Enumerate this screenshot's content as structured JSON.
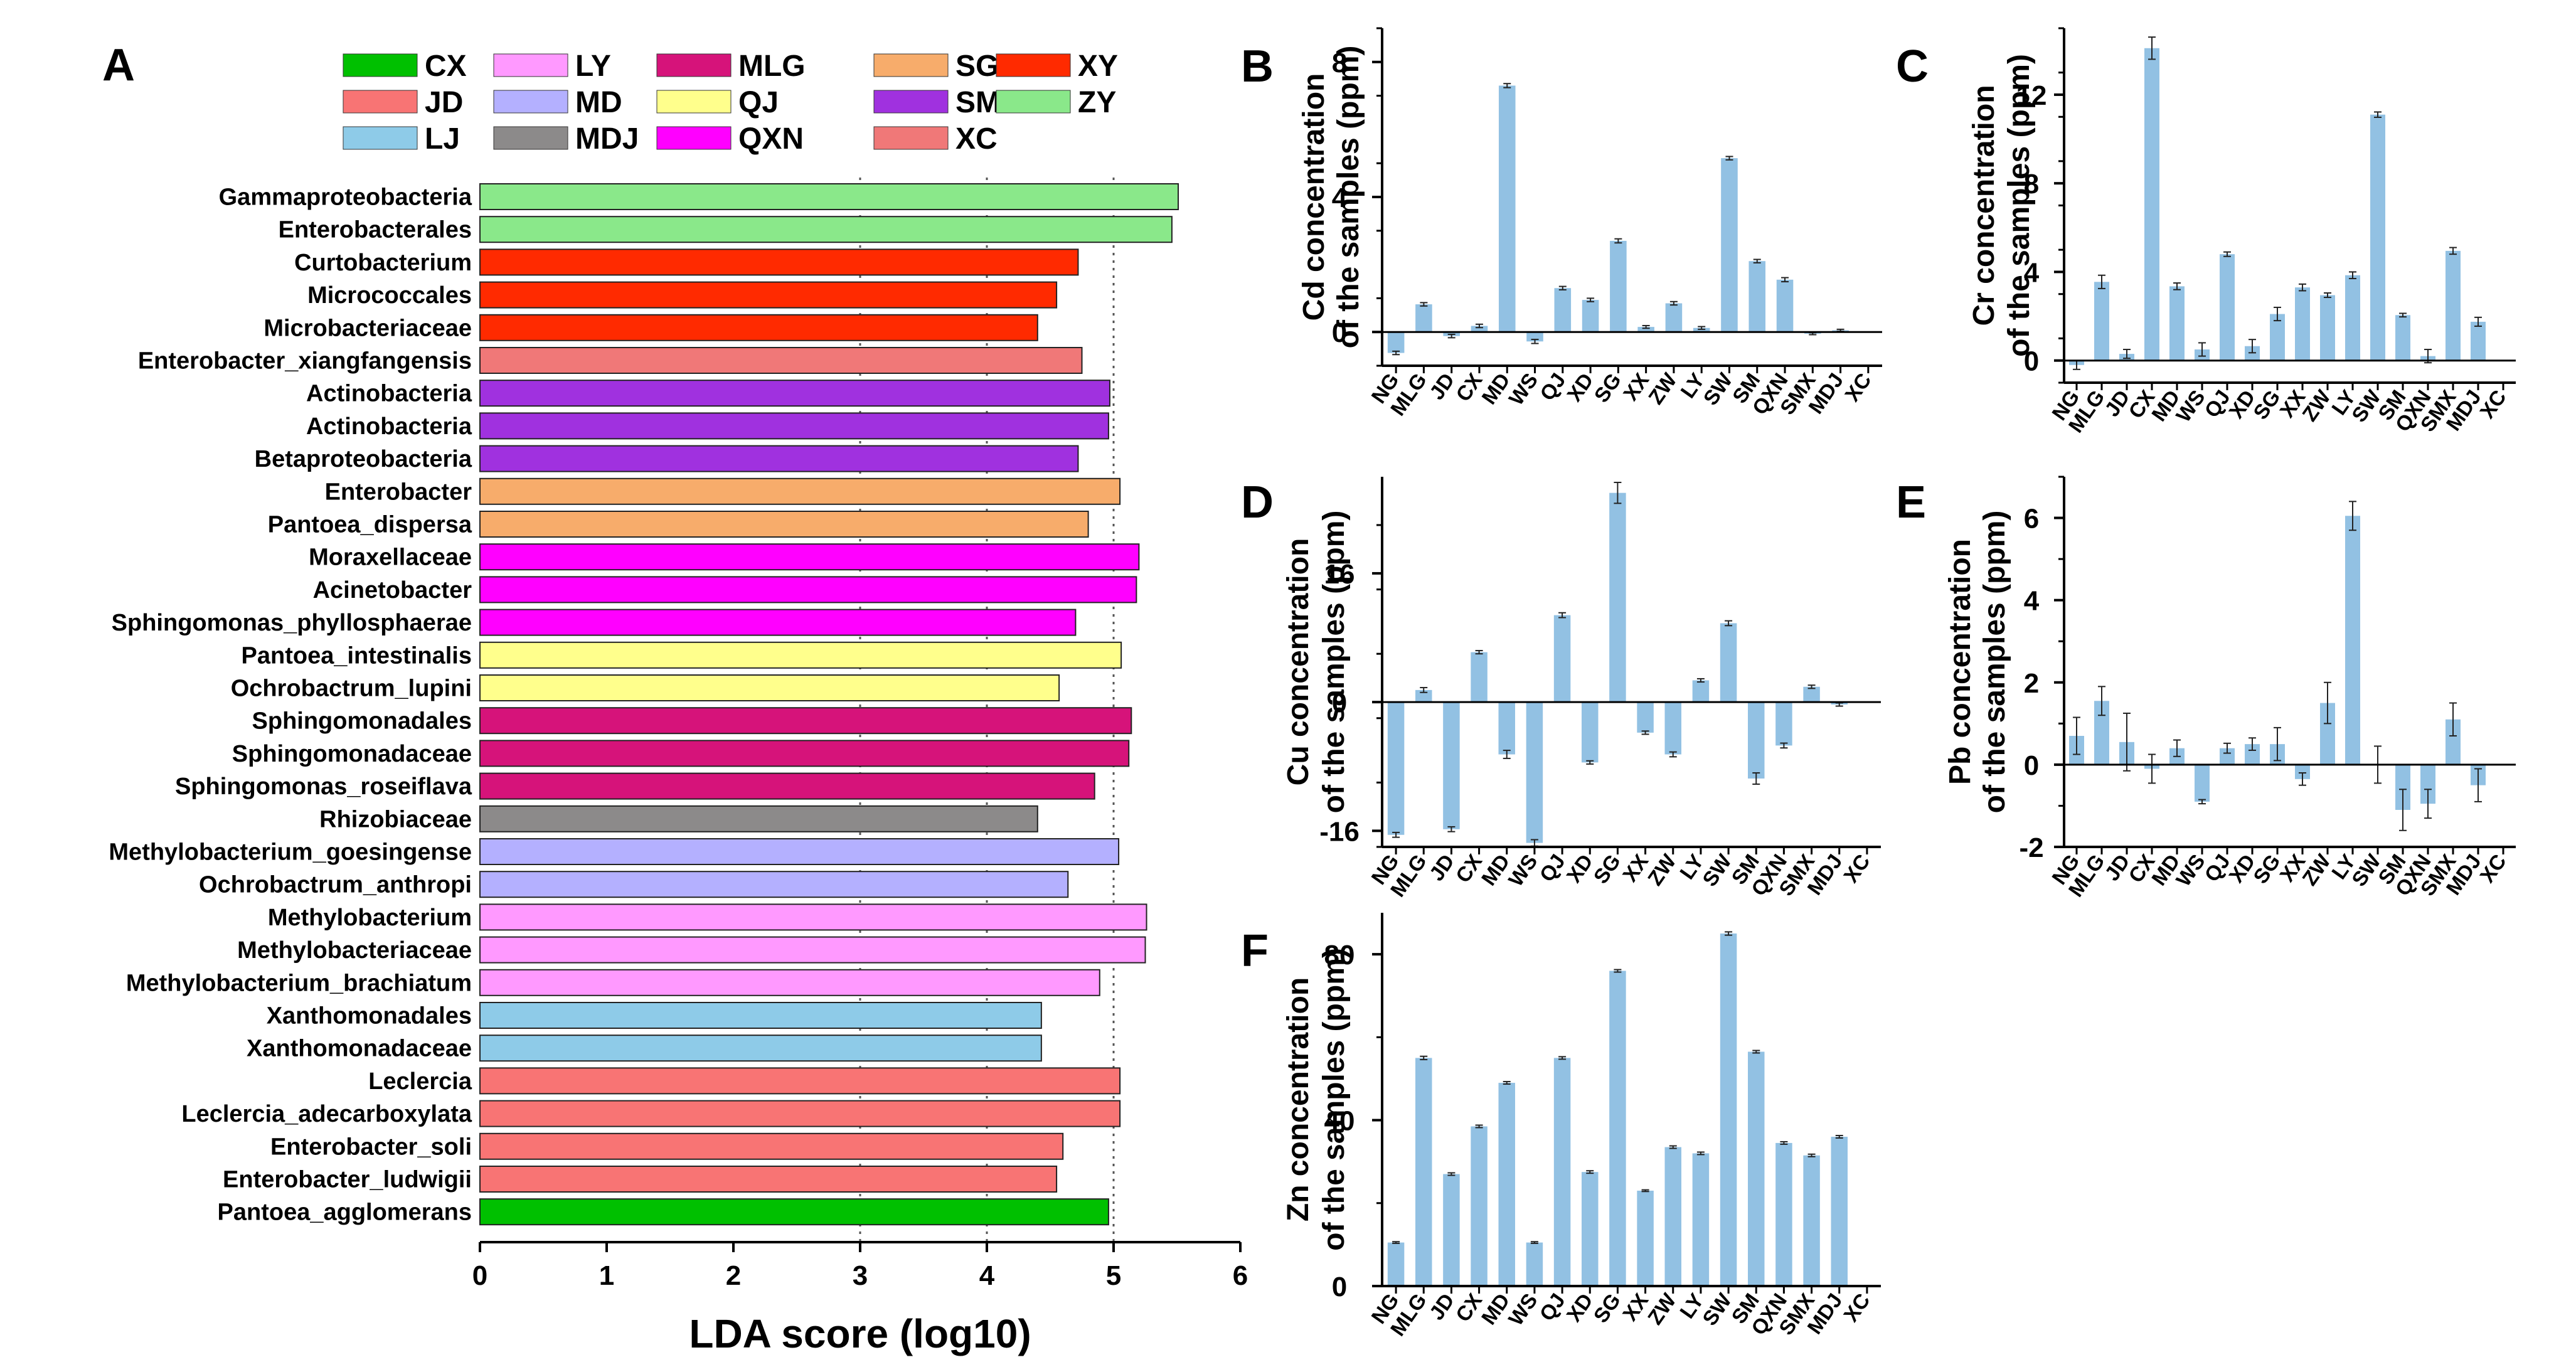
{
  "chart_data": [
    {
      "id": "A",
      "panel_label": "A",
      "type": "bar",
      "orientation": "horizontal",
      "title": "",
      "xlabel": "LDA score (log10)",
      "ylabel": "",
      "xlim": [
        0,
        6
      ],
      "xticks": [
        "0",
        "1",
        "2",
        "3",
        "4",
        "5",
        "6"
      ],
      "grid": "dotted vertical lines at 3, 4 and 5",
      "legend": {
        "placement": "top",
        "entries": [
          {
            "label": "CX",
            "color": "#00c000"
          },
          {
            "label": "LY",
            "color": "#ff99ff"
          },
          {
            "label": "MLG",
            "color": "#d6137a"
          },
          {
            "label": "SG",
            "color": "#f7ac6b"
          },
          {
            "label": "XY",
            "color": "#ff2a00"
          },
          {
            "label": "JD",
            "color": "#f87474"
          },
          {
            "label": "MD",
            "color": "#b4b0ff"
          },
          {
            "label": "QJ",
            "color": "#ffff8c"
          },
          {
            "label": "SMX",
            "color": "#a031df"
          },
          {
            "label": "ZY",
            "color": "#8ae88a"
          },
          {
            "label": "LJ",
            "color": "#8ecbe8"
          },
          {
            "label": "MDJ",
            "color": "#8c8a8a"
          },
          {
            "label": "QXN",
            "color": "#ff00ff"
          },
          {
            "label": "XC",
            "color": "#f07878"
          }
        ]
      },
      "bars": [
        {
          "label": "Gammaproteobacteria",
          "value": 5.51,
          "group": "ZY"
        },
        {
          "label": "Enterobacterales",
          "value": 5.46,
          "group": "ZY"
        },
        {
          "label": "Curtobacterium",
          "value": 4.72,
          "group": "XY"
        },
        {
          "label": "Micrococcales",
          "value": 4.55,
          "group": "XY"
        },
        {
          "label": "Microbacteriaceae",
          "value": 4.4,
          "group": "XY"
        },
        {
          "label": "Enterobacter_xiangfangensis",
          "value": 4.75,
          "group": "XC"
        },
        {
          "label": "Actinobacteria",
          "value": 4.97,
          "group": "SMX"
        },
        {
          "label": "Actinobacteria",
          "value": 4.96,
          "group": "SMX"
        },
        {
          "label": "Betaproteobacteria",
          "value": 4.72,
          "group": "SMX"
        },
        {
          "label": "Enterobacter",
          "value": 5.05,
          "group": "SG"
        },
        {
          "label": "Pantoea_dispersa",
          "value": 4.8,
          "group": "SG"
        },
        {
          "label": "Moraxellaceae",
          "value": 5.2,
          "group": "QXN"
        },
        {
          "label": "Acinetobacter",
          "value": 5.18,
          "group": "QXN"
        },
        {
          "label": "Sphingomonas_phyllosphaerae",
          "value": 4.7,
          "group": "QXN"
        },
        {
          "label": "Pantoea_intestinalis",
          "value": 5.06,
          "group": "QJ"
        },
        {
          "label": "Ochrobactrum_lupini",
          "value": 4.57,
          "group": "QJ"
        },
        {
          "label": "Sphingomonadales",
          "value": 5.14,
          "group": "MLG"
        },
        {
          "label": "Sphingomonadaceae",
          "value": 5.12,
          "group": "MLG"
        },
        {
          "label": "Sphingomonas_roseiflava",
          "value": 4.85,
          "group": "MLG"
        },
        {
          "label": "Rhizobiaceae",
          "value": 4.4,
          "group": "MDJ"
        },
        {
          "label": "Methylobacterium_goesingense",
          "value": 5.04,
          "group": "MD"
        },
        {
          "label": "Ochrobactrum_anthropi",
          "value": 4.64,
          "group": "MD"
        },
        {
          "label": "Methylobacterium",
          "value": 5.26,
          "group": "LY"
        },
        {
          "label": "Methylobacteriaceae",
          "value": 5.25,
          "group": "LY"
        },
        {
          "label": "Methylobacterium_brachiatum",
          "value": 4.89,
          "group": "LY"
        },
        {
          "label": "Xanthomonadales",
          "value": 4.43,
          "group": "LJ"
        },
        {
          "label": "Xanthomonadaceae",
          "value": 4.43,
          "group": "LJ"
        },
        {
          "label": "Leclercia",
          "value": 5.05,
          "group": "JD"
        },
        {
          "label": "Leclercia_adecarboxylata",
          "value": 5.05,
          "group": "JD"
        },
        {
          "label": "Enterobacter_soli",
          "value": 4.6,
          "group": "JD"
        },
        {
          "label": "Enterobacter_ludwigii",
          "value": 4.55,
          "group": "JD"
        },
        {
          "label": "Pantoea_agglomerans",
          "value": 4.96,
          "group": "CX"
        }
      ]
    },
    {
      "id": "B",
      "panel_label": "B",
      "type": "bar",
      "title": "",
      "ylabel": [
        "Cd concentration",
        "of the samples (ppm)"
      ],
      "xlabel": "",
      "ylim": [
        -1,
        9
      ],
      "yticks": [
        0,
        4,
        8
      ],
      "categories": [
        "NG",
        "MLG",
        "JD",
        "CX",
        "MD",
        "WS",
        "QJ",
        "XD",
        "SG",
        "XX",
        "ZW",
        "LY",
        "SW",
        "SM",
        "QXN",
        "SMX",
        "MDJ",
        "XC"
      ],
      "values": [
        -0.62,
        0.82,
        -0.12,
        0.18,
        7.3,
        -0.28,
        1.3,
        0.95,
        2.7,
        0.15,
        0.85,
        0.12,
        5.15,
        2.1,
        1.55,
        -0.05,
        0.05,
        0
      ],
      "errors": [
        0.05,
        0.05,
        0.05,
        0.05,
        0.06,
        0.06,
        0.05,
        0.05,
        0.06,
        0.04,
        0.05,
        0.04,
        0.05,
        0.05,
        0.06,
        0.03,
        0.03,
        0
      ]
    },
    {
      "id": "C",
      "panel_label": "C",
      "type": "bar",
      "title": "",
      "ylabel": [
        "Cr concentration",
        "of the samples (ppm)"
      ],
      "xlabel": "",
      "ylim": [
        -1,
        15
      ],
      "yticks": [
        0,
        4,
        8,
        12
      ],
      "categories": [
        "NG",
        "MLG",
        "JD",
        "CX",
        "MD",
        "WS",
        "QJ",
        "XD",
        "SG",
        "XX",
        "ZW",
        "LY",
        "SW",
        "SM",
        "QXN",
        "SMX",
        "MDJ",
        "XC"
      ],
      "values": [
        -0.2,
        3.55,
        0.3,
        14.1,
        3.35,
        0.5,
        4.8,
        0.65,
        2.1,
        3.3,
        2.95,
        3.85,
        11.1,
        2.05,
        0.2,
        4.95,
        1.75,
        0
      ],
      "errors": [
        0.2,
        0.3,
        0.2,
        0.5,
        0.15,
        0.3,
        0.1,
        0.3,
        0.3,
        0.15,
        0.1,
        0.15,
        0.12,
        0.08,
        0.3,
        0.15,
        0.2,
        0
      ]
    },
    {
      "id": "D",
      "panel_label": "D",
      "type": "bar",
      "title": "",
      "ylabel": [
        "Cu concentration",
        "of the samples (ppm)"
      ],
      "xlabel": "",
      "ylim": [
        -18,
        28
      ],
      "yticks": [
        -16,
        0,
        16
      ],
      "categories": [
        "NG",
        "MLG",
        "JD",
        "CX",
        "MD",
        "WS",
        "QJ",
        "XD",
        "SG",
        "XX",
        "ZW",
        "LY",
        "SW",
        "SM",
        "QXN",
        "SMX",
        "MDJ",
        "XC"
      ],
      "values": [
        -16.5,
        1.5,
        -15.8,
        6.2,
        -6.5,
        -17.5,
        10.8,
        -7.5,
        26.0,
        -3.8,
        -6.5,
        2.7,
        9.8,
        -9.5,
        -5.4,
        1.9,
        -0.3,
        0
      ],
      "errors": [
        0.3,
        0.3,
        0.3,
        0.2,
        0.5,
        0.4,
        0.3,
        0.2,
        1.3,
        0.2,
        0.3,
        0.2,
        0.3,
        0.7,
        0.3,
        0.2,
        0.2,
        0
      ]
    },
    {
      "id": "E",
      "panel_label": "E",
      "type": "bar",
      "title": "",
      "ylabel": [
        "Pb concentration",
        "of the samples (ppm)"
      ],
      "xlabel": "",
      "ylim": [
        -2,
        7
      ],
      "yticks": [
        -2,
        0,
        2,
        4,
        6
      ],
      "categories": [
        "NG",
        "MLG",
        "JD",
        "CX",
        "MD",
        "WS",
        "QJ",
        "XD",
        "SG",
        "XX",
        "ZW",
        "LY",
        "SW",
        "SM",
        "QXN",
        "SMX",
        "MDJ",
        "XC"
      ],
      "values": [
        0.7,
        1.55,
        0.55,
        -0.1,
        0.4,
        -0.9,
        0.4,
        0.5,
        0.5,
        -0.35,
        1.5,
        6.05,
        0,
        -1.1,
        -0.95,
        1.1,
        -0.5,
        0
      ],
      "errors": [
        0.45,
        0.35,
        0.7,
        0.35,
        0.2,
        0.05,
        0.12,
        0.15,
        0.4,
        0.15,
        0.5,
        0.35,
        0.45,
        0.5,
        0.35,
        0.4,
        0.4,
        0
      ]
    },
    {
      "id": "F",
      "panel_label": "F",
      "type": "bar",
      "title": "",
      "ylabel": [
        "Zn concentration",
        "of the samples (ppm)"
      ],
      "xlabel": "",
      "ylim": [
        0,
        90
      ],
      "yticks": [
        0,
        40,
        80
      ],
      "categories": [
        "NG",
        "MLG",
        "JD",
        "CX",
        "MD",
        "WS",
        "QJ",
        "XD",
        "SG",
        "XX",
        "ZW",
        "LY",
        "SW",
        "SM",
        "QXN",
        "SMX",
        "MDJ",
        "XC"
      ],
      "values": [
        10.5,
        55,
        27,
        38.5,
        49,
        10.5,
        55,
        27.5,
        76,
        23,
        33.5,
        32,
        85,
        56.5,
        34.5,
        31.5,
        36,
        0
      ],
      "errors": [
        0.2,
        0.4,
        0.3,
        0.3,
        0.3,
        0.2,
        0.3,
        0.3,
        0.3,
        0.2,
        0.3,
        0.3,
        0.4,
        0.3,
        0.3,
        0.3,
        0.3,
        0
      ]
    }
  ]
}
